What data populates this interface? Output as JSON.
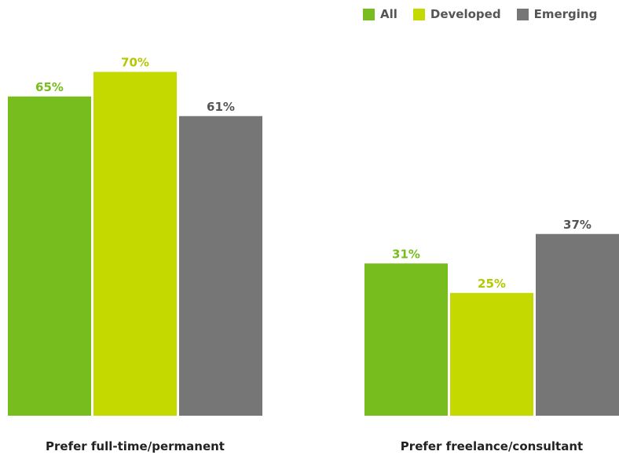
{
  "chart_data": {
    "type": "bar",
    "categories": [
      "Prefer full-time/permanent",
      "Prefer freelance/consultant"
    ],
    "series": [
      {
        "name": "All",
        "values": [
          65,
          31
        ],
        "labels": [
          "65%",
          "31%"
        ]
      },
      {
        "name": "Developed",
        "values": [
          70,
          25
        ],
        "labels": [
          "70%",
          "25%"
        ]
      },
      {
        "name": "Emerging",
        "values": [
          61,
          37
        ],
        "labels": [
          "61%",
          "37%"
        ]
      }
    ],
    "ylim": [
      0,
      100
    ],
    "grid": false,
    "legend_position": "top-right"
  },
  "colors": {
    "All": "#76bd1d",
    "Developed": "#c3d900",
    "Emerging": "#767676"
  },
  "label_colors": {
    "All": "#76bd1d",
    "Developed": "#b5c800",
    "Emerging": "#555555"
  }
}
